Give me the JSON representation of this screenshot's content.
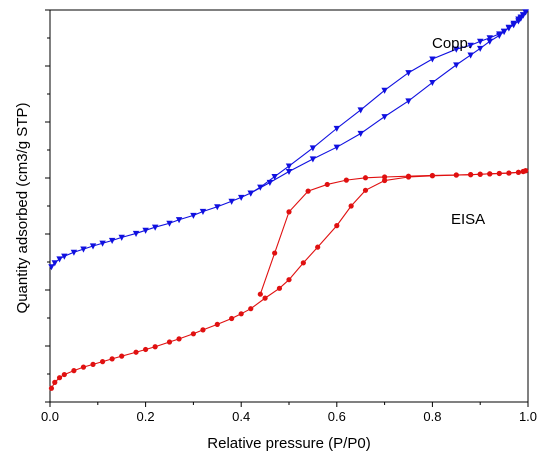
{
  "chart_data": {
    "type": "line",
    "title": "",
    "xlabel": "Relative pressure (P/P0)",
    "ylabel": "Quantity adsorbed (cm3/g STP)",
    "xlim": [
      0.0,
      1.0
    ],
    "ylim": [
      0,
      100
    ],
    "x_ticks": [
      "0.0",
      "0.2",
      "0.4",
      "0.6",
      "0.8",
      "1.0"
    ],
    "y_tick_labels_shown": false,
    "grid": false,
    "colors": {
      "Copp.": "#1010e0",
      "EISA": "#e01010"
    },
    "series": [
      {
        "name": "Copp.",
        "marker": "triangle-down",
        "adsorption": {
          "x": [
            0.003,
            0.01,
            0.02,
            0.03,
            0.05,
            0.07,
            0.09,
            0.11,
            0.13,
            0.15,
            0.18,
            0.2,
            0.22,
            0.25,
            0.27,
            0.3,
            0.32,
            0.35,
            0.38,
            0.4,
            0.42,
            0.46,
            0.5,
            0.55,
            0.6,
            0.65,
            0.7,
            0.75,
            0.8,
            0.85,
            0.88,
            0.9,
            0.92,
            0.94,
            0.95,
            0.96,
            0.97,
            0.98,
            0.985,
            0.99,
            0.995
          ],
          "y": [
            34.5,
            35.5,
            36.5,
            37.2,
            38.2,
            39.0,
            39.8,
            40.5,
            41.2,
            42.0,
            43.0,
            43.8,
            44.6,
            45.6,
            46.5,
            47.6,
            48.6,
            49.8,
            51.2,
            52.2,
            53.3,
            56.0,
            58.8,
            62.0,
            65.0,
            68.5,
            72.8,
            76.8,
            81.5,
            86.0,
            88.5,
            90.2,
            92.0,
            93.5,
            94.5,
            95.6,
            96.6,
            97.7,
            98.2,
            98.8,
            99.5
          ]
        },
        "desorption": {
          "x": [
            0.995,
            0.99,
            0.985,
            0.98,
            0.97,
            0.96,
            0.95,
            0.94,
            0.92,
            0.9,
            0.88,
            0.85,
            0.8,
            0.75,
            0.7,
            0.65,
            0.6,
            0.55,
            0.5,
            0.47,
            0.44,
            0.42
          ],
          "y": [
            99.5,
            98.7,
            97.9,
            97.2,
            96.2,
            95.4,
            94.6,
            93.9,
            92.9,
            92.0,
            91.0,
            90.0,
            87.5,
            84.0,
            79.5,
            74.5,
            69.8,
            64.8,
            60.2,
            57.5,
            54.8,
            53.3
          ]
        }
      },
      {
        "name": "EISA",
        "marker": "circle",
        "adsorption": {
          "x": [
            0.003,
            0.01,
            0.02,
            0.03,
            0.05,
            0.07,
            0.09,
            0.11,
            0.13,
            0.15,
            0.18,
            0.2,
            0.22,
            0.25,
            0.27,
            0.3,
            0.32,
            0.35,
            0.38,
            0.4,
            0.42,
            0.45,
            0.48,
            0.5,
            0.53,
            0.56,
            0.6,
            0.63,
            0.66,
            0.7,
            0.75,
            0.8,
            0.85,
            0.88,
            0.9,
            0.92,
            0.94,
            0.96,
            0.98,
            0.99,
            0.995
          ],
          "y": [
            3.5,
            5.0,
            6.2,
            7.0,
            8.0,
            8.9,
            9.6,
            10.3,
            11.0,
            11.7,
            12.7,
            13.4,
            14.1,
            15.3,
            16.1,
            17.4,
            18.4,
            19.8,
            21.3,
            22.5,
            23.8,
            26.5,
            29.0,
            31.2,
            35.5,
            39.5,
            45.0,
            50.0,
            54.0,
            56.5,
            57.4,
            57.7,
            57.9,
            58.0,
            58.1,
            58.2,
            58.3,
            58.4,
            58.6,
            58.8,
            59.0
          ]
        },
        "desorption": {
          "x": [
            0.995,
            0.99,
            0.98,
            0.96,
            0.94,
            0.92,
            0.9,
            0.88,
            0.85,
            0.8,
            0.75,
            0.7,
            0.66,
            0.62,
            0.58,
            0.54,
            0.5,
            0.47,
            0.44
          ],
          "y": [
            59.0,
            58.8,
            58.6,
            58.4,
            58.3,
            58.2,
            58.1,
            58.0,
            57.9,
            57.8,
            57.6,
            57.4,
            57.2,
            56.6,
            55.5,
            53.8,
            48.5,
            38.0,
            27.5
          ]
        }
      }
    ]
  }
}
